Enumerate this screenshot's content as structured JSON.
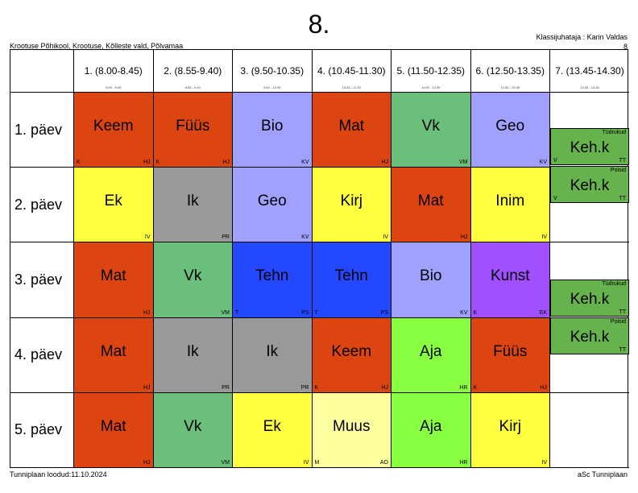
{
  "title": "8.",
  "school": "Krootuse Põhikool, Krootuse, Kõlleste vald, Põlvamaa",
  "teacher_line": "Klassijuhataja : Karin Valdas",
  "teacher_class": "8",
  "periods": [
    {
      "label": "1. (8.00-8.45)",
      "sub": "8:00 - 8:45"
    },
    {
      "label": "2. (8.55-9.40)",
      "sub": "8:55 - 9:40"
    },
    {
      "label": "3. (9.50-10.35)",
      "sub": "9:50 - 10:35"
    },
    {
      "label": "4. (10.45-11.30)",
      "sub": "10:45 - 11:30"
    },
    {
      "label": "5. (11.50-12.35)",
      "sub": "11:50 - 12:35"
    },
    {
      "label": "6. (12.50-13.35)",
      "sub": "12:50 - 13:35"
    },
    {
      "label": "7. (13.45-14.30)",
      "sub": "13:45 - 14:30"
    }
  ],
  "days": [
    "1. päev",
    "2. päev",
    "3. päev",
    "4. päev",
    "5. päev"
  ],
  "lessons": [
    [
      {
        "subject": "Keem",
        "group": "K",
        "teacher": "HJ",
        "color": "#dd4510"
      },
      {
        "subject": "Füüs",
        "group": "K",
        "teacher": "HJ",
        "color": "#dd4510"
      },
      {
        "subject": "Bio",
        "group": "",
        "teacher": "KV",
        "color": "#a0a0ff"
      },
      {
        "subject": "Mat",
        "group": "",
        "teacher": "HJ",
        "color": "#dd4510"
      },
      {
        "subject": "Vk",
        "group": "",
        "teacher": "VM",
        "color": "#6abf7b"
      },
      {
        "subject": "Geo",
        "group": "",
        "teacher": "KV",
        "color": "#a0a0ff"
      }
    ],
    [
      {
        "subject": "Ek",
        "group": "",
        "teacher": "IV",
        "color": "#ffff40"
      },
      {
        "subject": "Ik",
        "group": "",
        "teacher": "PR",
        "color": "#999999"
      },
      {
        "subject": "Geo",
        "group": "",
        "teacher": "KV",
        "color": "#a0a0ff"
      },
      {
        "subject": "Kirj",
        "group": "",
        "teacher": "IV",
        "color": "#ffff40"
      },
      {
        "subject": "Mat",
        "group": "",
        "teacher": "HJ",
        "color": "#dd4510"
      },
      {
        "subject": "Inim",
        "group": "",
        "teacher": "IV",
        "color": "#ffff40"
      }
    ],
    [
      {
        "subject": "Mat",
        "group": "",
        "teacher": "HJ",
        "color": "#dd4510"
      },
      {
        "subject": "Vk",
        "group": "",
        "teacher": "VM",
        "color": "#6abf7b"
      },
      {
        "subject": "Tehn",
        "group": "T",
        "teacher": "PS",
        "color": "#2448ff"
      },
      {
        "subject": "Tehn",
        "group": "T",
        "teacher": "PS",
        "color": "#2448ff"
      },
      {
        "subject": "Bio",
        "group": "",
        "teacher": "KV",
        "color": "#a0a0ff"
      },
      {
        "subject": "Kunst",
        "group": "K",
        "teacher": "EK",
        "color": "#a050ff"
      }
    ],
    [
      {
        "subject": "Mat",
        "group": "",
        "teacher": "HJ",
        "color": "#dd4510"
      },
      {
        "subject": "Ik",
        "group": "",
        "teacher": "PR",
        "color": "#999999"
      },
      {
        "subject": "Ik",
        "group": "",
        "teacher": "PR",
        "color": "#999999"
      },
      {
        "subject": "Keem",
        "group": "K",
        "teacher": "HJ",
        "color": "#dd4510"
      },
      {
        "subject": "Aja",
        "group": "",
        "teacher": "HR",
        "color": "#88ff40"
      },
      {
        "subject": "Füüs",
        "group": "K",
        "teacher": "HJ",
        "color": "#dd4510"
      }
    ],
    [
      {
        "subject": "Mat",
        "group": "",
        "teacher": "HJ",
        "color": "#dd4510"
      },
      {
        "subject": "Vk",
        "group": "",
        "teacher": "VM",
        "color": "#6abf7b"
      },
      {
        "subject": "Ek",
        "group": "",
        "teacher": "IV",
        "color": "#ffff40"
      },
      {
        "subject": "Muus",
        "group": "M",
        "teacher": "AO",
        "color": "#ffffa0"
      },
      {
        "subject": "Aja",
        "group": "",
        "teacher": "HR",
        "color": "#88ff40"
      },
      {
        "subject": "Kirj",
        "group": "",
        "teacher": "IV",
        "color": "#ffff40"
      }
    ]
  ],
  "seventh": [
    {
      "subject": "Keh.k",
      "section": "Tüdrukud",
      "group": "V",
      "teacher": "TT"
    },
    {
      "subject": "Keh.k",
      "section": "Poisid",
      "group": "V",
      "teacher": "TT"
    },
    {
      "subject": "Keh.k",
      "section": "Tüdrukud",
      "group": "",
      "teacher": "TT"
    },
    {
      "subject": "Keh.k",
      "section": "Poisid",
      "group": "",
      "teacher": "TT"
    }
  ],
  "footer_left": "Tunniplaan loodud:11.10.2024",
  "footer_right": "aSc Tunniplaan"
}
